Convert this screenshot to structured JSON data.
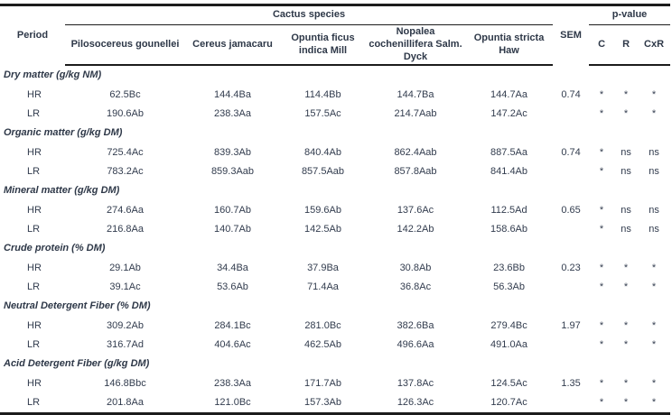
{
  "table": {
    "header": {
      "period": "Period",
      "cactus_species": "Cactus species",
      "sem": "SEM",
      "p_value": "p-value",
      "species": [
        "Pilosocereus gounellei",
        "Cereus jamacaru",
        "Opuntia ficus indica Mill",
        "Nopalea cochenillifera Salm. Dyck",
        "Opuntia stricta Haw"
      ],
      "p_cols": [
        "C",
        "R",
        "CxR"
      ]
    },
    "sections": [
      {
        "label": "Dry matter (g/kg NM)",
        "rows": [
          {
            "period": "HR",
            "values": [
              "62.5Bc",
              "144.4Ba",
              "114.4Bb",
              "144.7Ba",
              "144.7Aa"
            ],
            "sem": "0.74",
            "p": [
              "*",
              "*",
              "*"
            ]
          },
          {
            "period": "LR",
            "values": [
              "190.6Ab",
              "238.3Aa",
              "157.5Ac",
              "214.7Aab",
              "147.2Ac"
            ],
            "sem": "",
            "p": [
              "*",
              "*",
              "*"
            ]
          }
        ]
      },
      {
        "label": "Organic matter (g/kg DM)",
        "rows": [
          {
            "period": "HR",
            "values": [
              "725.4Ac",
              "839.3Ab",
              "840.4Ab",
              "862.4Aab",
              "887.5Aa"
            ],
            "sem": "0.74",
            "p": [
              "*",
              "ns",
              "ns"
            ]
          },
          {
            "period": "LR",
            "values": [
              "783.2Ac",
              "859.3Aab",
              "857.5Aab",
              "857.8Aab",
              "841.4Ab"
            ],
            "sem": "",
            "p": [
              "*",
              "ns",
              "ns"
            ]
          }
        ]
      },
      {
        "label": "Mineral matter (g/kg DM)",
        "rows": [
          {
            "period": "HR",
            "values": [
              "274.6Aa",
              "160.7Ab",
              "159.6Ab",
              "137.6Ac",
              "112.5Ad"
            ],
            "sem": "0.65",
            "p": [
              "*",
              "ns",
              "ns"
            ]
          },
          {
            "period": "LR",
            "values": [
              "216.8Aa",
              "140.7Ab",
              "142.5Ab",
              "142.2Ab",
              "158.6Ab"
            ],
            "sem": "",
            "p": [
              "*",
              "ns",
              "ns"
            ]
          }
        ]
      },
      {
        "label": "Crude protein (% DM)",
        "rows": [
          {
            "period": "HR",
            "values": [
              "29.1Ab",
              "34.4Ba",
              "37.9Ba",
              "30.8Ab",
              "23.6Bb"
            ],
            "sem": "0.23",
            "p": [
              "*",
              "*",
              "*"
            ]
          },
          {
            "period": "LR",
            "values": [
              "39.1Ac",
              "53.6Ab",
              "71.4Aa",
              "36.8Ac",
              "56.3Ab"
            ],
            "sem": "",
            "p": [
              "*",
              "*",
              "*"
            ]
          }
        ]
      },
      {
        "label": "Neutral Detergent Fiber (% DM)",
        "rows": [
          {
            "period": "HR",
            "values": [
              "309.2Ab",
              "284.1Bc",
              "281.0Bc",
              "382.6Ba",
              "279.4Bc"
            ],
            "sem": "1.97",
            "p": [
              "*",
              "*",
              "*"
            ]
          },
          {
            "period": "LR",
            "values": [
              "316.7Ad",
              "404.6Ac",
              "462.5Ab",
              "496.6Aa",
              "491.0Aa"
            ],
            "sem": "",
            "p": [
              "*",
              "*",
              "*"
            ]
          }
        ]
      },
      {
        "label": "Acid Detergent Fiber (g/kg DM)",
        "rows": [
          {
            "period": "HR",
            "values": [
              "146.8Bbc",
              "238.3Aa",
              "171.7Ab",
              "137.8Ac",
              "124.5Ac"
            ],
            "sem": "1.35",
            "p": [
              "*",
              "*",
              "*"
            ]
          },
          {
            "period": "LR",
            "values": [
              "201.8Aa",
              "121.0Bc",
              "157.3Ab",
              "126.3Ac",
              "120.7Ac"
            ],
            "sem": "",
            "p": [
              "*",
              "*",
              "*"
            ]
          }
        ]
      }
    ]
  }
}
